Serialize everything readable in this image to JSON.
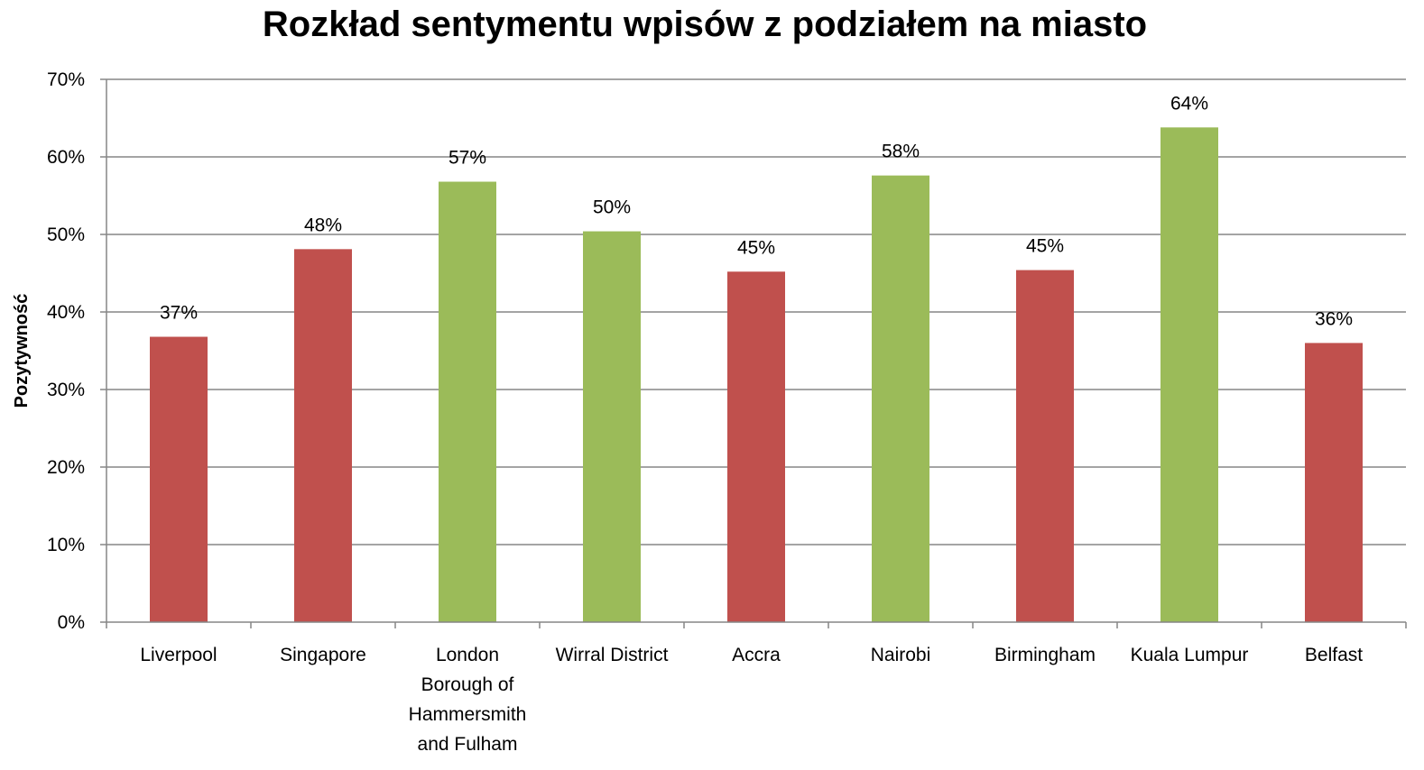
{
  "chart_data": {
    "type": "bar",
    "title": "Rozkład sentymentu wpisów z podziałem na miasto",
    "xlabel": "",
    "ylabel": "Pozytywność",
    "ylim": [
      0,
      70
    ],
    "yticks": [
      0,
      10,
      20,
      30,
      40,
      50,
      60,
      70
    ],
    "ytick_labels": [
      "0%",
      "10%",
      "20%",
      "30%",
      "40%",
      "50%",
      "60%",
      "70%"
    ],
    "grid": true,
    "legend": "none",
    "categories": [
      "Liverpool",
      "Singapore",
      "London Borough of Hammersmith and Fulham",
      "Wirral District",
      "Accra",
      "Nairobi",
      "Birmingham",
      "Kuala Lumpur",
      "Belfast"
    ],
    "category_label_lines": [
      [
        "Liverpool"
      ],
      [
        "Singapore"
      ],
      [
        "London",
        "Borough of",
        "Hammersmith",
        "and Fulham"
      ],
      [
        "Wirral District"
      ],
      [
        "Accra"
      ],
      [
        "Nairobi"
      ],
      [
        "Birmingham"
      ],
      [
        "Kuala Lumpur"
      ],
      [
        "Belfast"
      ]
    ],
    "values": [
      36.8,
      48.1,
      56.8,
      50.4,
      45.2,
      57.6,
      45.4,
      63.8,
      36.0
    ],
    "data_labels": [
      "37%",
      "48%",
      "57%",
      "50%",
      "45%",
      "58%",
      "45%",
      "64%",
      "36%"
    ],
    "bar_colors": [
      "#c0504d",
      "#c0504d",
      "#9bbb59",
      "#9bbb59",
      "#c0504d",
      "#9bbb59",
      "#c0504d",
      "#9bbb59",
      "#c0504d"
    ]
  },
  "colors": {
    "negative": "#c0504d",
    "positive": "#9bbb59",
    "grid": "#868686",
    "axis": "#868686"
  }
}
